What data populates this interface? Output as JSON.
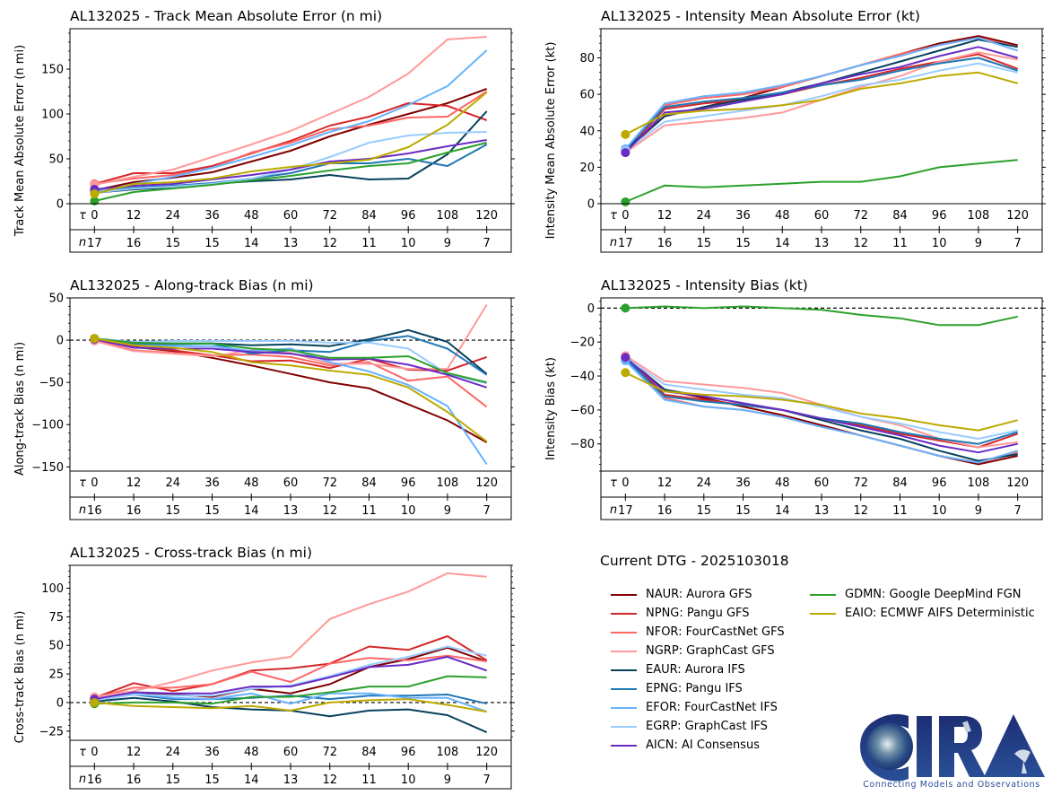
{
  "storm_id": "AL132025",
  "current_dtg_label": "Current DTG - 2025103018",
  "logo": {
    "text": "CIRA",
    "tagline": "Connecting Models and Observations"
  },
  "models": [
    {
      "id": "NAUR",
      "label": "NAUR: Aurora GFS",
      "color": "#800000"
    },
    {
      "id": "NPNG",
      "label": "NPNG: Pangu GFS",
      "color": "#d62728"
    },
    {
      "id": "NFOR",
      "label": "NFOR: FourCastNet GFS",
      "color": "#ff6666"
    },
    {
      "id": "NGRP",
      "label": "NGRP: GraphCast GFS",
      "color": "#ff9999"
    },
    {
      "id": "EAUR",
      "label": "EAUR: Aurora IFS",
      "color": "#08415c"
    },
    {
      "id": "EPNG",
      "label": "EPNG: Pangu IFS",
      "color": "#1f77b4"
    },
    {
      "id": "EFOR",
      "label": "EFOR: FourCastNet IFS",
      "color": "#66b2ff"
    },
    {
      "id": "EGRP",
      "label": "EGRP: GraphCast IFS",
      "color": "#99ccff"
    },
    {
      "id": "AICN",
      "label": "AICN: AI Consensus",
      "color": "#6a2bc5"
    },
    {
      "id": "GDMN",
      "label": "GDMN: Google DeepMind FGN",
      "color": "#2ca02c"
    },
    {
      "id": "EAIO",
      "label": "EAIO: ECMWF AIFS Deterministic",
      "color": "#bcaa00"
    }
  ],
  "chart_data": [
    {
      "id": "track_mae",
      "type": "line",
      "title": "AL132025 - Track Mean Absolute Error (n mi)",
      "xlabel": "",
      "ylabel": "Track Mean Absolute Error (n mi)",
      "ylim": [
        0,
        195
      ],
      "yticks": [
        0,
        50,
        100,
        150
      ],
      "x": [
        0,
        12,
        24,
        36,
        48,
        60,
        72,
        84,
        96,
        108,
        120
      ],
      "tau_label": "τ",
      "n_label": "n",
      "n": [
        17,
        16,
        15,
        15,
        14,
        13,
        12,
        11,
        10,
        9,
        7
      ],
      "zero_line": false,
      "series": [
        {
          "name": "NAUR",
          "values": [
            15,
            24,
            29,
            35,
            47,
            59,
            75,
            88,
            100,
            112,
            128
          ]
        },
        {
          "name": "NPNG",
          "values": [
            22,
            34,
            34,
            42,
            56,
            70,
            87,
            97,
            112,
            109,
            93
          ]
        },
        {
          "name": "NFOR",
          "values": [
            22,
            28,
            32,
            40,
            57,
            68,
            83,
            87,
            96,
            97,
            125
          ]
        },
        {
          "name": "NGRP",
          "values": [
            21,
            30,
            38,
            52,
            66,
            81,
            100,
            119,
            145,
            183,
            186
          ]
        },
        {
          "name": "EAUR",
          "values": [
            12,
            16,
            18,
            22,
            25,
            27,
            32,
            27,
            28,
            55,
            103
          ]
        },
        {
          "name": "EPNG",
          "values": [
            14,
            18,
            20,
            23,
            28,
            34,
            45,
            45,
            50,
            42,
            66
          ]
        },
        {
          "name": "EFOR",
          "values": [
            13,
            22,
            30,
            40,
            52,
            65,
            80,
            92,
            110,
            131,
            171
          ]
        },
        {
          "name": "EGRP",
          "values": [
            12,
            17,
            19,
            22,
            28,
            38,
            52,
            68,
            76,
            79,
            80
          ]
        },
        {
          "name": "AICN",
          "values": [
            16,
            20,
            22,
            27,
            32,
            38,
            47,
            50,
            56,
            64,
            71
          ]
        },
        {
          "name": "GDMN",
          "values": [
            3,
            13,
            17,
            21,
            26,
            31,
            37,
            42,
            45,
            57,
            68
          ]
        },
        {
          "name": "EAIO",
          "values": [
            11,
            22,
            24,
            28,
            36,
            41,
            45,
            49,
            63,
            88,
            124
          ]
        }
      ]
    },
    {
      "id": "intensity_mae",
      "type": "line",
      "title": "AL132025 - Intensity Mean Absolute Error (kt)",
      "xlabel": "",
      "ylabel": "Intensity Mean Absolute Error (kt)",
      "ylim": [
        0,
        96
      ],
      "yticks": [
        0,
        20,
        40,
        60,
        80
      ],
      "x": [
        0,
        12,
        24,
        36,
        48,
        60,
        72,
        84,
        96,
        108,
        120
      ],
      "tau_label": "τ",
      "n_label": "n",
      "n": [
        17,
        16,
        15,
        15,
        14,
        13,
        12,
        11,
        10,
        9,
        7
      ],
      "zero_line": false,
      "series": [
        {
          "name": "NAUR",
          "values": [
            29,
            48,
            53,
            58,
            64,
            70,
            76,
            82,
            88,
            92,
            87
          ]
        },
        {
          "name": "NPNG",
          "values": [
            29,
            52,
            55,
            57,
            60,
            65,
            69,
            74,
            78,
            82,
            74
          ]
        },
        {
          "name": "NFOR",
          "values": [
            29,
            54,
            58,
            60,
            64,
            70,
            76,
            82,
            87,
            91,
            86
          ]
        },
        {
          "name": "NGRP",
          "values": [
            28,
            43,
            45,
            47,
            50,
            57,
            64,
            70,
            78,
            83,
            79
          ]
        },
        {
          "name": "EAUR",
          "values": [
            30,
            48,
            53,
            57,
            61,
            66,
            72,
            78,
            84,
            90,
            86
          ]
        },
        {
          "name": "EPNG",
          "values": [
            30,
            53,
            56,
            58,
            61,
            65,
            68,
            73,
            77,
            80,
            73
          ]
        },
        {
          "name": "EFOR",
          "values": [
            30,
            55,
            59,
            61,
            65,
            70,
            76,
            81,
            87,
            91,
            84
          ]
        },
        {
          "name": "EGRP",
          "values": [
            29,
            45,
            48,
            51,
            54,
            59,
            65,
            68,
            73,
            77,
            72
          ]
        },
        {
          "name": "AICN",
          "values": [
            28,
            50,
            52,
            56,
            60,
            66,
            71,
            75,
            81,
            86,
            80
          ]
        },
        {
          "name": "GDMN",
          "values": [
            1,
            10,
            9,
            10,
            11,
            12,
            12,
            15,
            20,
            22,
            24
          ]
        },
        {
          "name": "EAIO",
          "values": [
            38,
            49,
            51,
            52,
            54,
            57,
            63,
            66,
            70,
            72,
            66
          ]
        }
      ]
    },
    {
      "id": "along_track_bias",
      "type": "line",
      "title": "AL132025 - Along-track Bias (n mi)",
      "xlabel": "",
      "ylabel": "Along-track Bias (n mi)",
      "ylim": [
        -155,
        50
      ],
      "yticks": [
        -150,
        -100,
        -50,
        0,
        50
      ],
      "x": [
        0,
        12,
        24,
        36,
        48,
        60,
        72,
        84,
        96,
        108,
        120
      ],
      "tau_label": "τ",
      "n_label": "n",
      "n": [
        16,
        16,
        15,
        15,
        14,
        13,
        12,
        11,
        10,
        9,
        7
      ],
      "zero_line": true,
      "series": [
        {
          "name": "NAUR",
          "values": [
            1,
            -8,
            -13,
            -21,
            -30,
            -40,
            -50,
            -57,
            -76,
            -95,
            -121
          ]
        },
        {
          "name": "NPNG",
          "values": [
            1,
            -8,
            -12,
            -18,
            -25,
            -24,
            -33,
            -22,
            -35,
            -36,
            -20
          ]
        },
        {
          "name": "NFOR",
          "values": [
            0,
            -12,
            -15,
            -18,
            -17,
            -20,
            -30,
            -26,
            -48,
            -43,
            -79
          ]
        },
        {
          "name": "NGRP",
          "values": [
            -1,
            -13,
            -16,
            -19,
            -12,
            -15,
            -28,
            -28,
            -34,
            -34,
            42
          ]
        },
        {
          "name": "EAUR",
          "values": [
            2,
            -3,
            -4,
            -4,
            -6,
            -5,
            -7,
            1,
            12,
            -2,
            -40
          ]
        },
        {
          "name": "EPNG",
          "values": [
            2,
            -5,
            -5,
            -4,
            -16,
            -12,
            -14,
            -1,
            5,
            -10,
            -41
          ]
        },
        {
          "name": "EFOR",
          "values": [
            2,
            -6,
            -7,
            -7,
            -13,
            -10,
            -26,
            -37,
            -53,
            -78,
            -147
          ]
        },
        {
          "name": "EGRP",
          "values": [
            2,
            -2,
            -1,
            -1,
            -1,
            -1,
            -3,
            -3,
            -10,
            -40,
            -51
          ]
        },
        {
          "name": "AICN",
          "values": [
            1,
            -9,
            -10,
            -10,
            -14,
            -16,
            -23,
            -22,
            -29,
            -41,
            -56
          ]
        },
        {
          "name": "GDMN",
          "values": [
            2,
            -3,
            -4,
            -4,
            -10,
            -12,
            -21,
            -21,
            -19,
            -39,
            -50
          ]
        },
        {
          "name": "EAIO",
          "values": [
            2,
            -6,
            -9,
            -14,
            -26,
            -30,
            -36,
            -41,
            -56,
            -85,
            -120
          ]
        }
      ]
    },
    {
      "id": "intensity_bias",
      "type": "line",
      "title": "AL132025 - Intensity Bias (kt)",
      "xlabel": "",
      "ylabel": "Intensity Bias (kt)",
      "ylim": [
        -96,
        6
      ],
      "yticks": [
        -80,
        -60,
        -40,
        -20,
        0
      ],
      "x": [
        0,
        12,
        24,
        36,
        48,
        60,
        72,
        84,
        96,
        108,
        120
      ],
      "tau_label": "τ",
      "n_label": "n",
      "n": [
        17,
        16,
        15,
        15,
        14,
        13,
        12,
        11,
        10,
        9,
        7
      ],
      "zero_line": true,
      "series": [
        {
          "name": "NAUR",
          "values": [
            -29,
            -48,
            -53,
            -58,
            -63,
            -69,
            -75,
            -81,
            -87,
            -92,
            -87
          ]
        },
        {
          "name": "NPNG",
          "values": [
            -29,
            -51,
            -54,
            -57,
            -60,
            -65,
            -69,
            -74,
            -78,
            -82,
            -74
          ]
        },
        {
          "name": "NFOR",
          "values": [
            -29,
            -53,
            -58,
            -60,
            -64,
            -70,
            -75,
            -81,
            -87,
            -91,
            -85
          ]
        },
        {
          "name": "NGRP",
          "values": [
            -28,
            -43,
            -45,
            -47,
            -50,
            -57,
            -64,
            -69,
            -77,
            -82,
            -79
          ]
        },
        {
          "name": "EAUR",
          "values": [
            -30,
            -48,
            -52,
            -56,
            -60,
            -66,
            -72,
            -77,
            -84,
            -90,
            -86
          ]
        },
        {
          "name": "EPNG",
          "values": [
            -30,
            -52,
            -55,
            -57,
            -60,
            -65,
            -68,
            -73,
            -77,
            -80,
            -73
          ]
        },
        {
          "name": "EFOR",
          "values": [
            -31,
            -54,
            -58,
            -60,
            -64,
            -70,
            -75,
            -81,
            -87,
            -91,
            -84
          ]
        },
        {
          "name": "EGRP",
          "values": [
            -29,
            -45,
            -48,
            -51,
            -53,
            -58,
            -64,
            -68,
            -73,
            -77,
            -72
          ]
        },
        {
          "name": "AICN",
          "values": [
            -29,
            -49,
            -52,
            -56,
            -60,
            -65,
            -70,
            -75,
            -81,
            -85,
            -80
          ]
        },
        {
          "name": "GDMN",
          "values": [
            0,
            1,
            0,
            1,
            0,
            -1,
            -4,
            -6,
            -10,
            -10,
            -5
          ]
        },
        {
          "name": "EAIO",
          "values": [
            -38,
            -49,
            -51,
            -52,
            -54,
            -57,
            -62,
            -65,
            -69,
            -72,
            -66
          ]
        }
      ]
    },
    {
      "id": "cross_track_bias",
      "type": "line",
      "title": "AL132025 - Cross-track Bias (n mi)",
      "xlabel": "",
      "ylabel": "Cross-track Bias (n mi)",
      "ylim": [
        -33,
        120
      ],
      "yticks": [
        -25,
        0,
        25,
        50,
        75,
        100
      ],
      "x": [
        0,
        12,
        24,
        36,
        48,
        60,
        72,
        84,
        96,
        108,
        120
      ],
      "tau_label": "τ",
      "n_label": "n",
      "n": [
        16,
        16,
        15,
        15,
        14,
        13,
        12,
        11,
        10,
        9,
        7
      ],
      "zero_line": true,
      "series": [
        {
          "name": "NAUR",
          "values": [
            3,
            8,
            7,
            5,
            12,
            8,
            16,
            31,
            38,
            48,
            36
          ]
        },
        {
          "name": "NPNG",
          "values": [
            4,
            17,
            10,
            16,
            28,
            30,
            34,
            49,
            46,
            58,
            37
          ]
        },
        {
          "name": "NFOR",
          "values": [
            4,
            13,
            13,
            16,
            27,
            18,
            34,
            39,
            37,
            41,
            36
          ]
        },
        {
          "name": "NGRP",
          "values": [
            5,
            10,
            18,
            28,
            35,
            40,
            73,
            86,
            97,
            113,
            110
          ]
        },
        {
          "name": "EAUR",
          "values": [
            1,
            4,
            1,
            -4,
            -6,
            -7,
            -12,
            -7,
            -6,
            -11,
            -26
          ]
        },
        {
          "name": "EPNG",
          "values": [
            2,
            7,
            3,
            3,
            4,
            6,
            3,
            6,
            6,
            7,
            -1
          ]
        },
        {
          "name": "EFOR",
          "values": [
            2,
            8,
            4,
            3,
            8,
            -1,
            8,
            8,
            4,
            4,
            -8
          ]
        },
        {
          "name": "EGRP",
          "values": [
            2,
            7,
            6,
            6,
            12,
            15,
            23,
            33,
            40,
            49,
            41
          ]
        },
        {
          "name": "AICN",
          "values": [
            3,
            9,
            8,
            8,
            14,
            14,
            22,
            31,
            33,
            40,
            28
          ]
        },
        {
          "name": "GDMN",
          "values": [
            -1,
            0,
            0,
            -1,
            5,
            5,
            9,
            14,
            14,
            23,
            22
          ]
        },
        {
          "name": "EAIO",
          "values": [
            0,
            -3,
            -4,
            -5,
            -3,
            -7,
            0,
            2,
            3,
            -2,
            -8
          ]
        }
      ]
    }
  ]
}
